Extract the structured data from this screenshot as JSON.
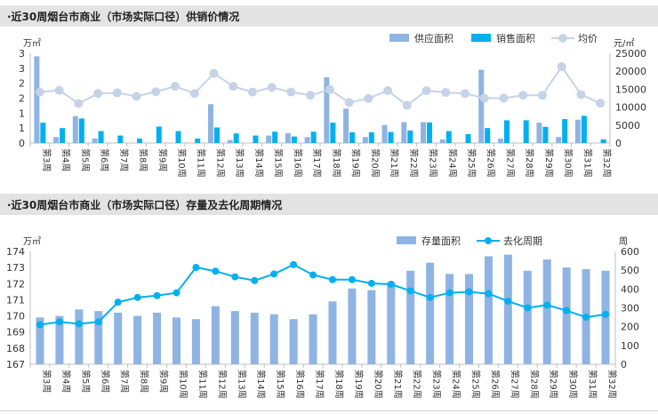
{
  "chart_data": [
    {
      "type": "bar",
      "title": "·近30周烟台市商业（市场实际口径）供销价情况",
      "left_unit": "万㎡",
      "right_unit": "元/㎡",
      "categories": [
        "第3周",
        "第4周",
        "第5周",
        "第6周",
        "第7周",
        "第8周",
        "第9周",
        "第10周",
        "第11周",
        "第12周",
        "第13周",
        "第14周",
        "第15周",
        "第16周",
        "第17周",
        "第18周",
        "第19周",
        "第20周",
        "第21周",
        "第22周",
        "第23周",
        "第24周",
        "第25周",
        "第26周",
        "第27周",
        "第28周",
        "第29周",
        "第30周",
        "第31周",
        "第32周"
      ],
      "y_ticks_left": [
        "0",
        "1",
        "1",
        "2",
        "2",
        "3",
        "3"
      ],
      "ylim_left": [
        0,
        3
      ],
      "y_ticks_right": [
        "0",
        "5000",
        "10000",
        "15000",
        "20000",
        "25000"
      ],
      "ylim_right": [
        0,
        25000
      ],
      "legend_position": "top-right",
      "series": [
        {
          "name": "供应面积",
          "kind": "bar",
          "axis": "left",
          "color": "#8fb4e3",
          "values": [
            2.9,
            0.2,
            0.9,
            0.15,
            0,
            0,
            0,
            0,
            0,
            1.3,
            0.1,
            0,
            0.25,
            0.33,
            0.2,
            2.2,
            1.15,
            0.2,
            0.6,
            0.7,
            0.7,
            0.12,
            0,
            2.45,
            0.15,
            0,
            0.68,
            0.2,
            0.78,
            0
          ],
          "data_labels": []
        },
        {
          "name": "销售面积",
          "kind": "bar",
          "axis": "left",
          "color": "#00b0f0",
          "values": [
            0.68,
            0.5,
            0.82,
            0.4,
            0.25,
            0.15,
            0.55,
            0.4,
            0.15,
            0.52,
            0.32,
            0.25,
            0.38,
            0.22,
            0.38,
            0.68,
            0.36,
            0.36,
            0.37,
            0.42,
            0.69,
            0.4,
            0.3,
            0.5,
            0.76,
            0.76,
            0.54,
            0.8,
            0.91,
            0.12
          ]
        },
        {
          "name": "均价",
          "kind": "line",
          "axis": "right",
          "color": "#c6d3e6",
          "values": [
            14200,
            14700,
            11000,
            13800,
            14000,
            13000,
            14300,
            15800,
            13800,
            19400,
            15800,
            14200,
            15500,
            14200,
            13300,
            14900,
            11300,
            12400,
            14600,
            10500,
            14600,
            14100,
            13800,
            12500,
            12500,
            13300,
            13300,
            21300,
            13500,
            11100
          ]
        }
      ]
    },
    {
      "type": "bar",
      "title": "·近30周烟台市商业（市场实际口径）存量及去化周期情况",
      "left_unit": "万㎡",
      "right_unit": "周",
      "categories": [
        "第3周",
        "第4周",
        "第5周",
        "第6周",
        "第7周",
        "第8周",
        "第9周",
        "第10周",
        "第11周",
        "第12周",
        "第13周",
        "第14周",
        "第15周",
        "第16周",
        "第17周",
        "第18周",
        "第19周",
        "第20周",
        "第21周",
        "第22周",
        "第23周",
        "第24周",
        "第25周",
        "第26周",
        "第27周",
        "第28周",
        "第29周",
        "第30周",
        "第31周",
        "第32周"
      ],
      "y_ticks_left": [
        "167",
        "168",
        "169",
        "170",
        "171",
        "172",
        "173",
        "174"
      ],
      "ylim_left": [
        167,
        174
      ],
      "y_ticks_right": [
        "0",
        "100",
        "200",
        "300",
        "400",
        "500",
        "600"
      ],
      "ylim_right": [
        0,
        600
      ],
      "legend_position": "top-right",
      "series": [
        {
          "name": "存量面积",
          "kind": "bar",
          "axis": "left",
          "color": "#8fb4e3",
          "values": [
            169.9,
            170.0,
            170.4,
            170.3,
            170.2,
            170.0,
            170.2,
            169.9,
            169.8,
            170.6,
            170.3,
            170.2,
            170.1,
            169.8,
            170.1,
            170.9,
            171.7,
            171.6,
            172.1,
            172.8,
            173.3,
            172.6,
            172.6,
            173.7,
            173.8,
            172.8,
            173.5,
            173.0,
            172.9,
            172.8
          ]
        },
        {
          "name": "去化周期",
          "kind": "line",
          "axis": "right",
          "color": "#00b0f0",
          "values": [
            210,
            225,
            215,
            225,
            330,
            355,
            365,
            380,
            515,
            495,
            465,
            445,
            480,
            530,
            475,
            450,
            450,
            430,
            425,
            390,
            355,
            380,
            385,
            375,
            335,
            300,
            315,
            285,
            250,
            265
          ]
        }
      ]
    }
  ]
}
